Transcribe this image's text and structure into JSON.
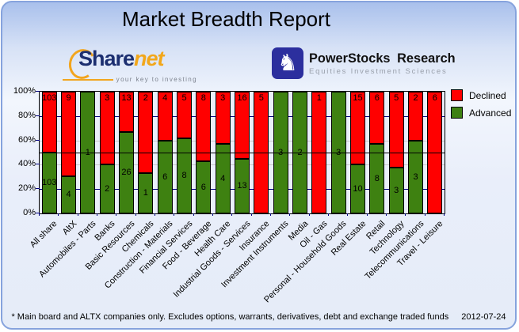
{
  "header": {
    "title": "Market Breadth Report"
  },
  "logos": {
    "sharenet": {
      "share": "Share",
      "net": "net",
      "tagline": "your key to investing"
    },
    "powerstocks": {
      "name_left": "PowerStocks",
      "name_right": "Research",
      "subtitle": "Equities Investment Sciences",
      "knight_glyph": "♞"
    }
  },
  "chart_data": {
    "type": "bar",
    "stacked": "percent",
    "title": "Market Breadth Report",
    "categories": [
      "All share",
      "AltX",
      "Automobiles - Parts",
      "Banks",
      "Basic Resources",
      "Chemicals",
      "Construction - Materials",
      "Financial Services",
      "Food - Beverage",
      "Health Care",
      "Industrial Goods - Services",
      "Insurance",
      "Investment Instruments",
      "Media",
      "Oil - Gas",
      "Personal - Household Goods",
      "Real Estate",
      "Retail",
      "Technology",
      "Telecommunications",
      "Travel - Leisure"
    ],
    "series": [
      {
        "name": "Declined",
        "color": "#ff0000",
        "values": [
          103,
          9,
          0,
          3,
          13,
          2,
          4,
          5,
          8,
          3,
          16,
          5,
          0,
          0,
          1,
          0,
          15,
          6,
          5,
          2,
          6
        ]
      },
      {
        "name": "Advanced",
        "color": "#3e8111",
        "values": [
          103,
          4,
          1,
          2,
          26,
          1,
          6,
          8,
          6,
          4,
          13,
          0,
          3,
          2,
          0,
          3,
          10,
          8,
          3,
          3,
          0
        ]
      }
    ],
    "ylim": [
      0,
      100
    ],
    "y_ticks": [
      {
        "value": 100,
        "label": "100%"
      },
      {
        "value": 80,
        "label": "80%"
      },
      {
        "value": 60,
        "label": "60%"
      },
      {
        "value": 40,
        "label": "40%"
      },
      {
        "value": 20,
        "label": "20%"
      },
      {
        "value": 0,
        "label": "0%"
      }
    ],
    "grid": {
      "navy_levels": [
        80,
        20
      ],
      "gray_levels": [
        60,
        40
      ],
      "navy_color": "#000080",
      "gray_color": "#c9c9c9",
      "half_line_level": 50
    },
    "legend_position": "right-top"
  },
  "footer": {
    "note": "* Main board and ALTX companies only. Excludes options, warrants, derivatives, debt and exchange traded funds",
    "date": "2012-07-24"
  }
}
